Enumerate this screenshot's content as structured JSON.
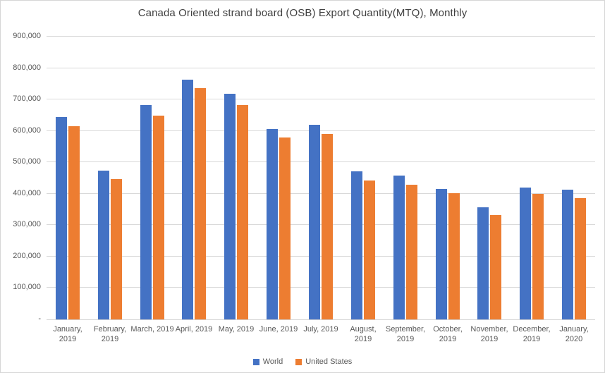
{
  "chart_data": {
    "type": "bar",
    "title": "Canada Oriented strand board (OSB) Export Quantity(MTQ), Monthly",
    "categories": [
      "January, 2019",
      "February, 2019",
      "March, 2019",
      "April, 2019",
      "May, 2019",
      "June, 2019",
      "July, 2019",
      "August, 2019",
      "September, 2019",
      "October, 2019",
      "November, 2019",
      "December, 2019",
      "January, 2020"
    ],
    "series": [
      {
        "name": "World",
        "color": "#4472C4",
        "values": [
          644000,
          474000,
          683000,
          764000,
          718000,
          607000,
          620000,
          471000,
          458000,
          416000,
          357000,
          419000,
          413000
        ]
      },
      {
        "name": "United States",
        "color": "#ED7D31",
        "values": [
          616000,
          447000,
          648000,
          737000,
          682000,
          580000,
          590000,
          443000,
          428000,
          401000,
          333000,
          400000,
          387000
        ]
      }
    ],
    "xlabel": "",
    "ylabel": "",
    "ylim": [
      0,
      900000
    ],
    "ytick_step": 100000,
    "ytick_labels": [
      "-",
      "100,000",
      "200,000",
      "300,000",
      "400,000",
      "500,000",
      "600,000",
      "700,000",
      "800,000",
      "900,000"
    ],
    "grid": true,
    "legend_position": "bottom"
  },
  "colors": {
    "grid": "#d9d9d9",
    "axis_text": "#595959",
    "title_text": "#404040",
    "background": "#ffffff",
    "border": "#d6d6d6"
  }
}
